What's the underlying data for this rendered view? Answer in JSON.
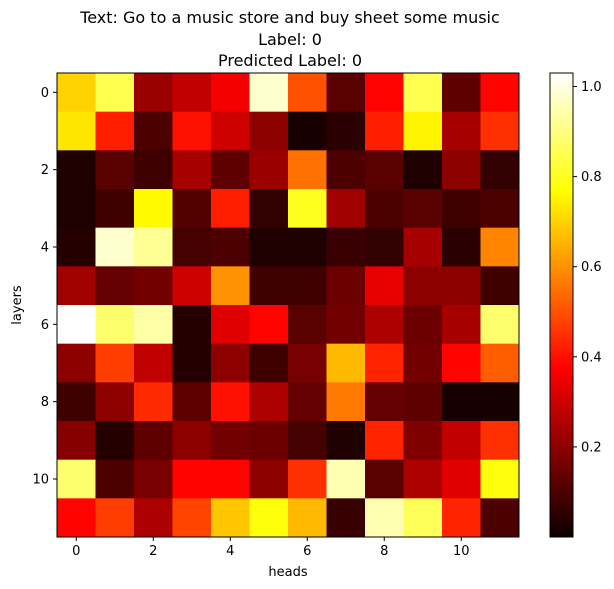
{
  "chart_data": {
    "type": "heatmap",
    "title_lines": [
      "Text: Go to a music store and buy sheet some music",
      "Label: 0",
      "Predicted Label: 0"
    ],
    "xlabel": "heads",
    "ylabel": "layers",
    "x_ticks": [
      0,
      2,
      4,
      6,
      8,
      10
    ],
    "y_ticks": [
      0,
      2,
      4,
      6,
      8,
      10
    ],
    "n_cols": 12,
    "n_rows": 12,
    "colormap": "hot",
    "colorbar": {
      "vmin": 0.0,
      "vmax": 1.03,
      "ticks": [
        0.2,
        0.4,
        0.6,
        0.8,
        1.0
      ],
      "tick_labels": [
        "0.2",
        "0.4",
        "0.6",
        "0.8",
        "1.0"
      ]
    },
    "values": [
      [
        0.7,
        0.85,
        0.22,
        0.28,
        0.36,
        0.98,
        0.5,
        0.12,
        0.38,
        0.85,
        0.13,
        0.38
      ],
      [
        0.73,
        0.42,
        0.1,
        0.4,
        0.3,
        0.2,
        0.02,
        0.05,
        0.42,
        0.75,
        0.24,
        0.45
      ],
      [
        0.03,
        0.12,
        0.08,
        0.24,
        0.13,
        0.22,
        0.55,
        0.1,
        0.12,
        0.03,
        0.2,
        0.06
      ],
      [
        0.03,
        0.08,
        0.76,
        0.11,
        0.42,
        0.06,
        0.8,
        0.23,
        0.1,
        0.12,
        0.08,
        0.1
      ],
      [
        0.04,
        0.98,
        0.92,
        0.09,
        0.1,
        0.03,
        0.03,
        0.07,
        0.06,
        0.24,
        0.05,
        0.58
      ],
      [
        0.23,
        0.14,
        0.16,
        0.3,
        0.6,
        0.08,
        0.08,
        0.15,
        0.34,
        0.2,
        0.2,
        0.08
      ],
      [
        1.03,
        0.88,
        0.94,
        0.04,
        0.33,
        0.38,
        0.12,
        0.16,
        0.25,
        0.15,
        0.24,
        0.88
      ],
      [
        0.2,
        0.47,
        0.28,
        0.04,
        0.2,
        0.08,
        0.17,
        0.66,
        0.43,
        0.16,
        0.38,
        0.52
      ],
      [
        0.08,
        0.2,
        0.44,
        0.13,
        0.4,
        0.25,
        0.14,
        0.56,
        0.14,
        0.13,
        0.02,
        0.02
      ],
      [
        0.19,
        0.04,
        0.13,
        0.2,
        0.16,
        0.15,
        0.09,
        0.03,
        0.43,
        0.18,
        0.28,
        0.45
      ],
      [
        0.88,
        0.1,
        0.17,
        0.38,
        0.38,
        0.2,
        0.45,
        0.95,
        0.12,
        0.25,
        0.33,
        0.78
      ],
      [
        0.38,
        0.47,
        0.25,
        0.48,
        0.68,
        0.78,
        0.66,
        0.07,
        0.95,
        0.86,
        0.43,
        0.1
      ]
    ]
  }
}
